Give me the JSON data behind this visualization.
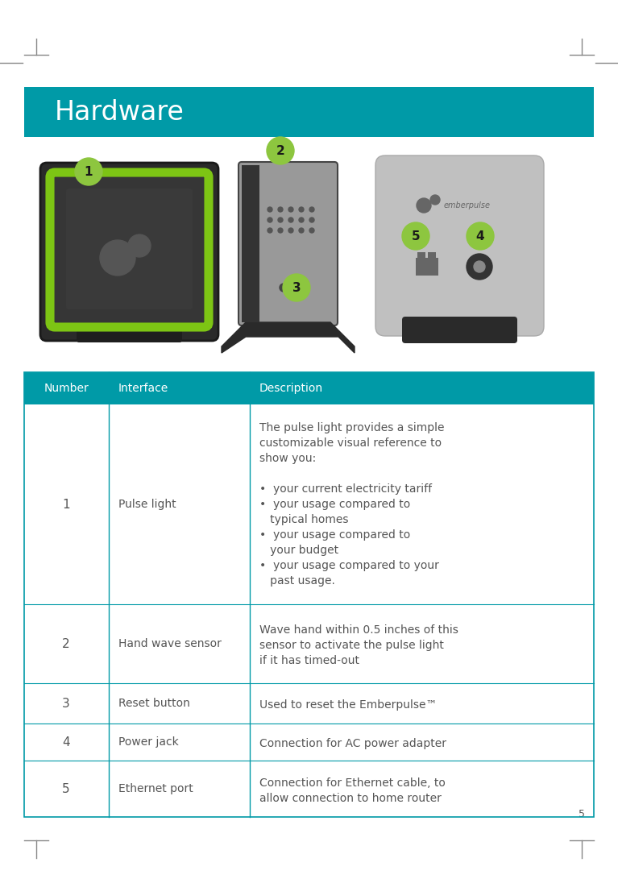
{
  "title": "Hardware",
  "title_bg_color": "#009AA7",
  "title_text_color": "#FFFFFF",
  "title_fontsize": 24,
  "page_bg_color": "#FFFFFF",
  "table_header_bg": "#009AA7",
  "table_header_text_color": "#FFFFFF",
  "table_border_color": "#009AA7",
  "table_text_color": "#555555",
  "table_headers": [
    "Number",
    "Interface",
    "Description"
  ],
  "table_rows": [
    {
      "number": "1",
      "interface": "Pulse light",
      "desc_lines": [
        "The pulse light provides a simple",
        "customizable visual reference to",
        "show you:",
        "",
        "•  your current electricity tariff",
        "•  your usage compared to",
        "   typical homes",
        "•  your usage compared to",
        "   your budget",
        "•  your usage compared to your",
        "   past usage."
      ]
    },
    {
      "number": "2",
      "interface": "Hand wave sensor",
      "desc_lines": [
        "Wave hand within 0.5 inches of this",
        "sensor to activate the pulse light",
        "if it has timed-out"
      ]
    },
    {
      "number": "3",
      "interface": "Reset button",
      "desc_lines": [
        "Used to reset the Emberpulse™"
      ]
    },
    {
      "number": "4",
      "interface": "Power jack",
      "desc_lines": [
        "Connection for AC power adapter"
      ]
    },
    {
      "number": "5",
      "interface": "Ethernet port",
      "desc_lines": [
        "Connection for Ethernet cable, to",
        "allow connection to home router"
      ]
    }
  ],
  "page_number": "5",
  "mark_color": "#888888",
  "green_badge": "#8DC63F",
  "badge_text": "#1a1a1a"
}
